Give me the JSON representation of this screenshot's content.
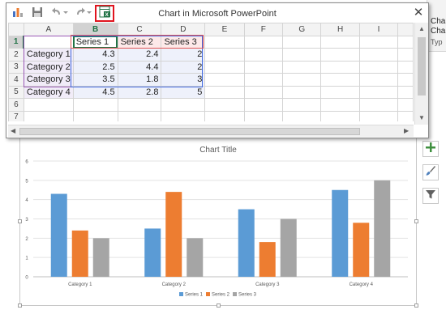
{
  "window": {
    "title": "Chart in Microsoft PowerPoint",
    "close_glyph": "✕",
    "toolbar_icons": [
      "chart-icon",
      "save-icon",
      "undo-icon",
      "redo-icon",
      "edit-data-in-excel-icon"
    ]
  },
  "ribbon_fragment": {
    "line1": "Char",
    "line2": "Chart T",
    "line3": "Typ"
  },
  "sheet": {
    "columns": [
      "A",
      "B",
      "C",
      "D",
      "E",
      "F",
      "G",
      "H",
      "I"
    ],
    "rows": [
      "1",
      "2",
      "3",
      "4",
      "5",
      "6",
      "7"
    ],
    "selected_column": "B",
    "selected_row": "1",
    "header_row": [
      "",
      "Series 1",
      "Series 2",
      "Series 3"
    ],
    "data_rows": [
      [
        "Category 1",
        "4.3",
        "2.4",
        "2"
      ],
      [
        "Category 2",
        "2.5",
        "4.4",
        "2"
      ],
      [
        "Category 3",
        "3.5",
        "1.8",
        "3"
      ],
      [
        "Category 4",
        "4.5",
        "2.8",
        "5"
      ]
    ]
  },
  "colors": {
    "series1": "#5b9bd5",
    "series2": "#ed7d31",
    "series3": "#a5a5a5",
    "excel_green": "#217346",
    "highlight_red": "#e0141e"
  },
  "side_buttons": [
    "add-chart-element-icon",
    "chart-styles-brush-icon",
    "chart-filter-icon"
  ],
  "chart_data": {
    "type": "bar",
    "title": "Chart Title",
    "categories": [
      "Category 1",
      "Category 2",
      "Category 3",
      "Category 4"
    ],
    "series": [
      {
        "name": "Series 1",
        "values": [
          4.3,
          2.5,
          3.5,
          4.5
        ]
      },
      {
        "name": "Series 2",
        "values": [
          2.4,
          4.4,
          1.8,
          2.8
        ]
      },
      {
        "name": "Series 3",
        "values": [
          2,
          2,
          3,
          5
        ]
      }
    ],
    "ylim": [
      0,
      6
    ],
    "yticks": [
      "0",
      "1",
      "2",
      "3",
      "4",
      "5",
      "6"
    ],
    "grid": true,
    "legend_position": "bottom"
  }
}
